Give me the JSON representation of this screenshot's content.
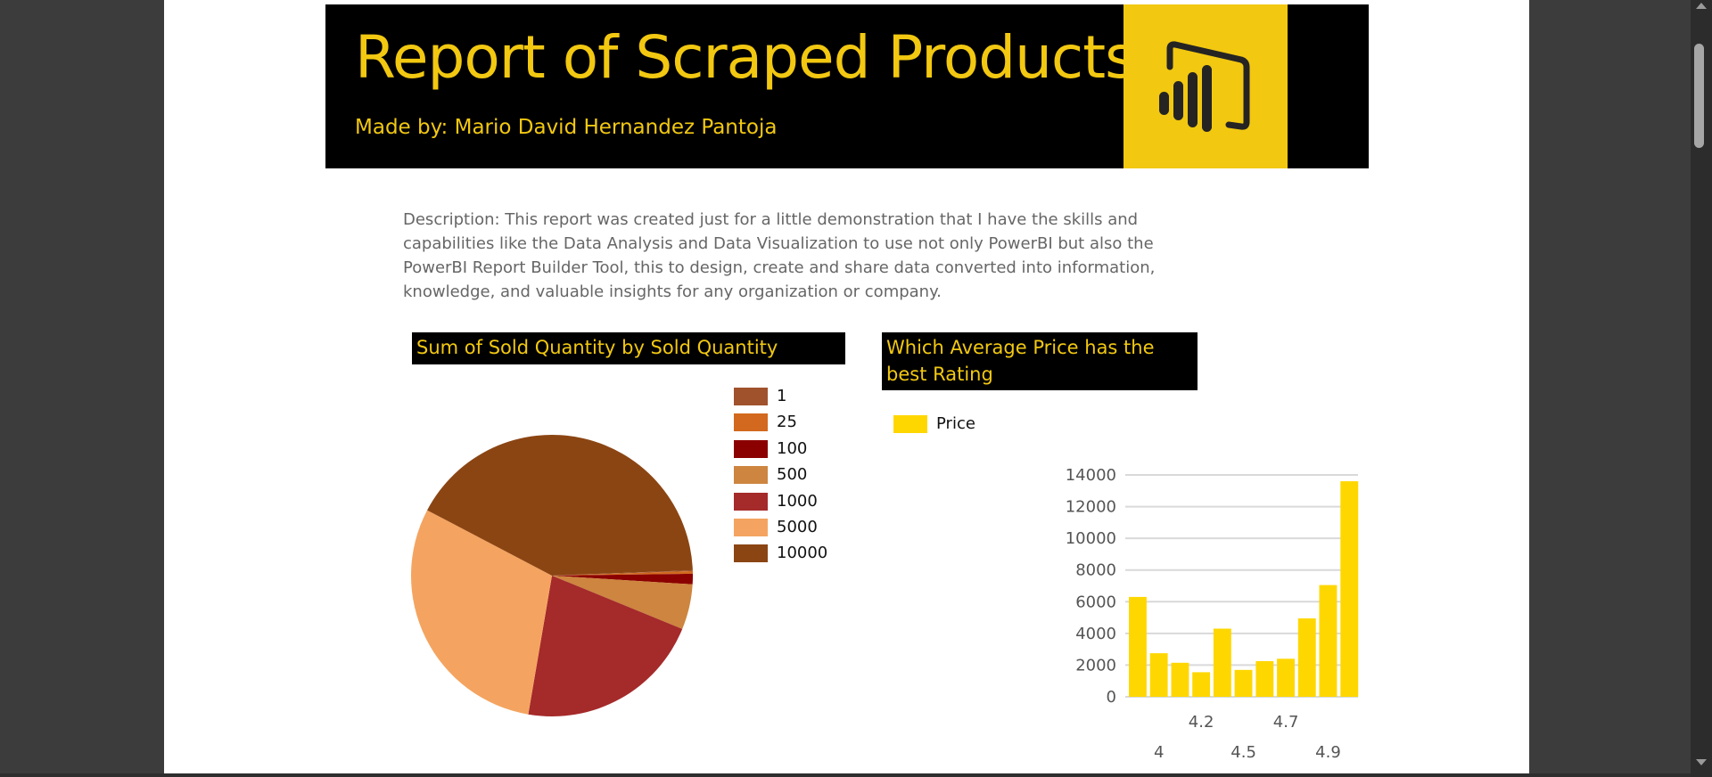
{
  "report": {
    "title": "Report of Scraped Products",
    "author": "Made by: Mario David Hernandez Pantoja",
    "description": "Description: This report was created just for a little demonstration that I have the skills and capabilities like the Data Analysis and Data Visualization to use not only PowerBI but also the PowerBI Report Builder Tool, this to design, create and share data converted into information, knowledge, and valuable insights for any organization or company.",
    "logo": "powerbi-logo",
    "accent_color": "#f2c811",
    "header_background": "#000000"
  },
  "chart_data": [
    {
      "type": "pie",
      "title": "Sum of Sold Quantity by Sold Quantity",
      "legend_position": "top-right",
      "categories": [
        "1",
        "25",
        "100",
        "500",
        "1000",
        "5000",
        "10000"
      ],
      "values": [
        0.1,
        0.3,
        1.2,
        5.2,
        21.5,
        30.0,
        41.7
      ],
      "colors": [
        "#a0522d",
        "#d2691e",
        "#8b0000",
        "#cd853f",
        "#a52a2a",
        "#f4a460",
        "#8b4513"
      ]
    },
    {
      "type": "bar",
      "title": "Which Average Price has the best Rating",
      "legend_position": "top-left",
      "series": [
        {
          "name": "Price",
          "color": "#ffd700",
          "values": [
            6300,
            2750,
            2150,
            1550,
            4300,
            1700,
            2250,
            2400,
            4950,
            7050,
            13600
          ]
        }
      ],
      "x_tick_labels": [
        {
          "index": 1,
          "label": "4",
          "row": 2
        },
        {
          "index": 3,
          "label": "4.2",
          "row": 1
        },
        {
          "index": 5,
          "label": "4.5",
          "row": 2
        },
        {
          "index": 7,
          "label": "4.7",
          "row": 1
        },
        {
          "index": 9,
          "label": "4.9",
          "row": 2
        }
      ],
      "y_ticks": [
        0,
        2000,
        4000,
        6000,
        8000,
        10000,
        12000,
        14000
      ],
      "ylim": [
        0,
        14000
      ],
      "grid": true
    }
  ]
}
